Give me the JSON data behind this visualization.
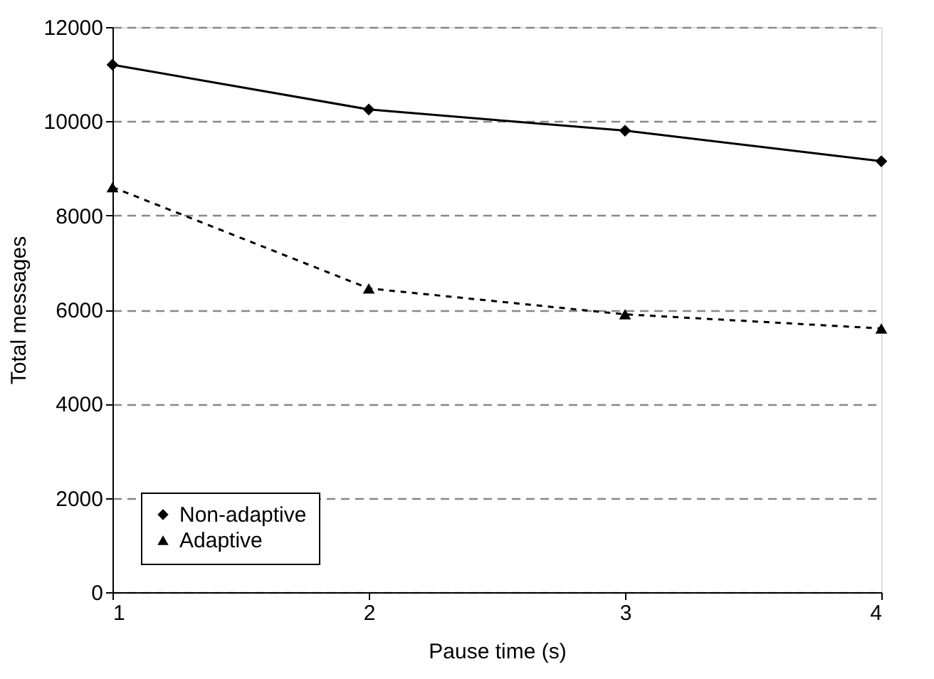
{
  "chart_data": {
    "type": "line",
    "xlabel": "Pause time (s)",
    "ylabel": "Total messages",
    "x": [
      1,
      2,
      3,
      4
    ],
    "xlim": [
      1,
      4
    ],
    "xticks": [
      1,
      2,
      3,
      4
    ],
    "ylim": [
      0,
      12000
    ],
    "yticks": [
      0,
      2000,
      4000,
      6000,
      8000,
      10000,
      12000
    ],
    "grid": "y",
    "legend": "bottom left",
    "series": [
      {
        "name": "Non-adaptive",
        "color": "#000000",
        "marker": "diamond",
        "line_style": "solid",
        "values": [
          11200,
          10250,
          9800,
          9150
        ]
      },
      {
        "name": "Adaptive",
        "color": "#000000",
        "marker": "triangle",
        "line_style": "dashed",
        "values": [
          8600,
          6450,
          5900,
          5600
        ]
      }
    ]
  }
}
